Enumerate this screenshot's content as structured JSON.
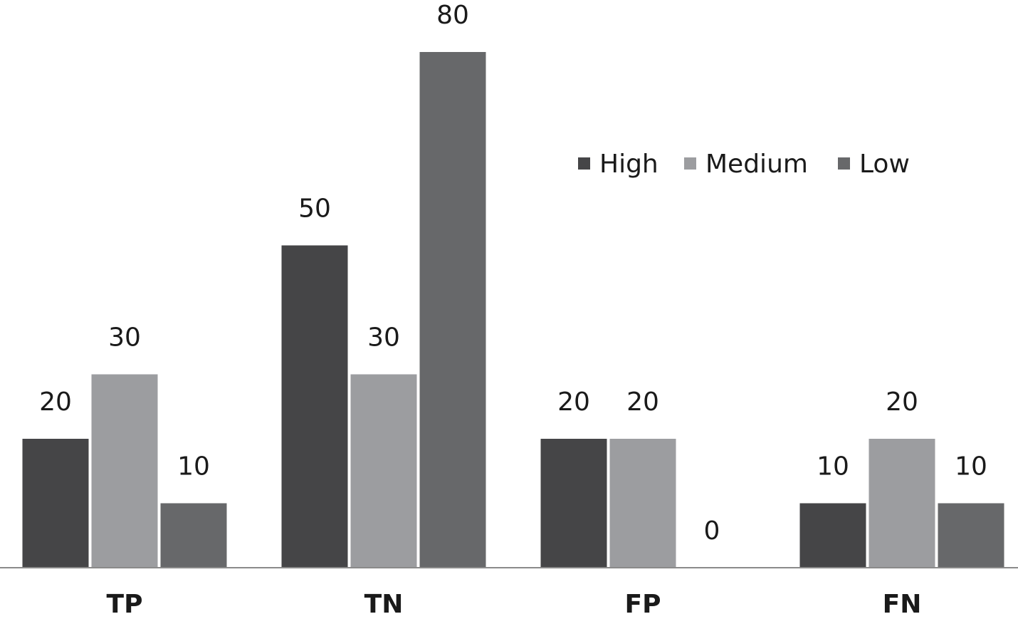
{
  "chart_data": {
    "type": "bar",
    "categories": [
      "TP",
      "TN",
      "FP",
      "FN"
    ],
    "series": [
      {
        "name": "High",
        "color": "#454547",
        "values": [
          20,
          50,
          20,
          10
        ]
      },
      {
        "name": "Medium",
        "color": "#9c9da0",
        "values": [
          30,
          30,
          20,
          20
        ]
      },
      {
        "name": "Low",
        "color": "#67686a",
        "values": [
          10,
          80,
          0,
          10
        ]
      }
    ],
    "ylim": [
      0,
      80
    ],
    "legend": "upper right"
  }
}
